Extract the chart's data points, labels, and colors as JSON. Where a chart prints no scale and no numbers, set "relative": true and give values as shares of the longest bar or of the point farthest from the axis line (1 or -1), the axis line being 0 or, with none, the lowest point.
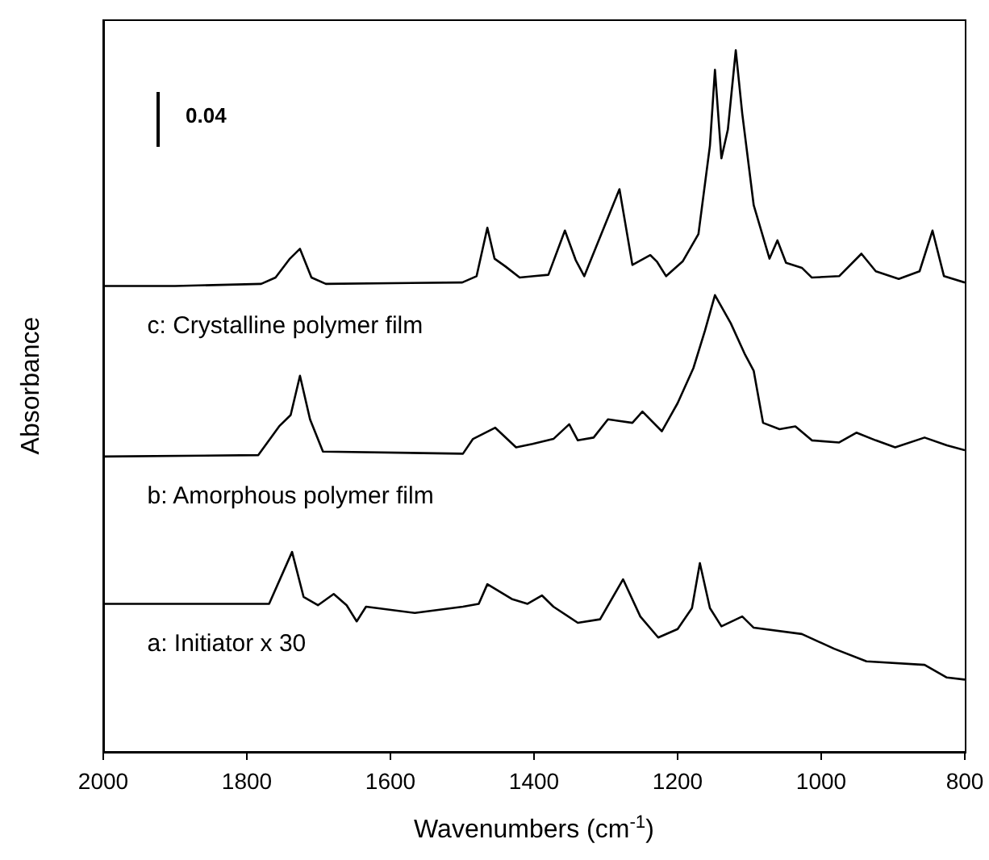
{
  "chart_data": {
    "type": "line",
    "relative": true,
    "xlabel": "Wavenumbers (cm$^{-1}$)",
    "ylabel": "Absorbance",
    "annotations": [
      "0.04"
    ],
    "xlim": [
      2000,
      800
    ],
    "xticks": [
      2000,
      1800,
      1600,
      1400,
      1200,
      1000,
      800
    ],
    "legend": false,
    "marker": "none",
    "line_style": "solid",
    "grid": false,
    "series": [
      {
        "name": "c: Crystalline polymer film",
        "color": "#000000",
        "x": [
          2000,
          1900,
          1780,
          1760,
          1740,
          1726,
          1710,
          1690,
          1500,
          1480,
          1465,
          1455,
          1440,
          1420,
          1400,
          1380,
          1357,
          1342,
          1330,
          1281,
          1263,
          1238,
          1229,
          1216,
          1193,
          1171,
          1155,
          1148,
          1139,
          1130,
          1119,
          1110,
          1094,
          1072,
          1061,
          1049,
          1027,
          1013,
          975,
          944,
          924,
          892,
          863,
          845,
          829,
          800
        ],
        "values": [
          0.664,
          0.664,
          0.667,
          0.676,
          0.703,
          0.717,
          0.676,
          0.667,
          0.669,
          0.678,
          0.747,
          0.703,
          0.692,
          0.676,
          0.678,
          0.68,
          0.743,
          0.701,
          0.678,
          0.802,
          0.694,
          0.708,
          0.699,
          0.678,
          0.699,
          0.738,
          0.864,
          0.972,
          0.846,
          0.887,
          1,
          0.91,
          0.779,
          0.703,
          0.729,
          0.697,
          0.69,
          0.676,
          0.678,
          0.71,
          0.685,
          0.674,
          0.685,
          0.743,
          0.678,
          0.669
        ]
      },
      {
        "name": "b: Amorphous polymer film",
        "color": "#000000",
        "x": [
          2000,
          1784,
          1755,
          1739,
          1726,
          1712,
          1694,
          1499,
          1485,
          1454,
          1425,
          1402,
          1373,
          1351,
          1339,
          1317,
          1297,
          1263,
          1249,
          1222,
          1200,
          1178,
          1162,
          1148,
          1126,
          1106,
          1094,
          1081,
          1058,
          1036,
          1013,
          975,
          951,
          924,
          897,
          856,
          825,
          800
        ],
        "values": [
          0.421,
          0.423,
          0.464,
          0.48,
          0.536,
          0.474,
          0.428,
          0.425,
          0.446,
          0.462,
          0.434,
          0.439,
          0.446,
          0.467,
          0.444,
          0.448,
          0.474,
          0.469,
          0.485,
          0.457,
          0.497,
          0.547,
          0.6,
          0.651,
          0.611,
          0.566,
          0.543,
          0.469,
          0.46,
          0.464,
          0.444,
          0.441,
          0.455,
          0.444,
          0.434,
          0.448,
          0.437,
          0.43
        ]
      },
      {
        "name": "a: Initiator x 30",
        "color": "#000000",
        "x": [
          2000,
          1769,
          1737,
          1721,
          1701,
          1679,
          1661,
          1647,
          1634,
          1566,
          1499,
          1477,
          1465,
          1431,
          1409,
          1389,
          1373,
          1339,
          1308,
          1276,
          1252,
          1227,
          1200,
          1180,
          1169,
          1155,
          1139,
          1110,
          1094,
          1027,
          982,
          937,
          856,
          825,
          800
        ],
        "values": [
          0.211,
          0.211,
          0.285,
          0.221,
          0.209,
          0.225,
          0.209,
          0.186,
          0.207,
          0.198,
          0.207,
          0.211,
          0.239,
          0.218,
          0.211,
          0.223,
          0.207,
          0.184,
          0.189,
          0.246,
          0.193,
          0.163,
          0.175,
          0.205,
          0.269,
          0.205,
          0.179,
          0.193,
          0.177,
          0.168,
          0.147,
          0.129,
          0.124,
          0.106,
          0.103
        ]
      }
    ]
  }
}
